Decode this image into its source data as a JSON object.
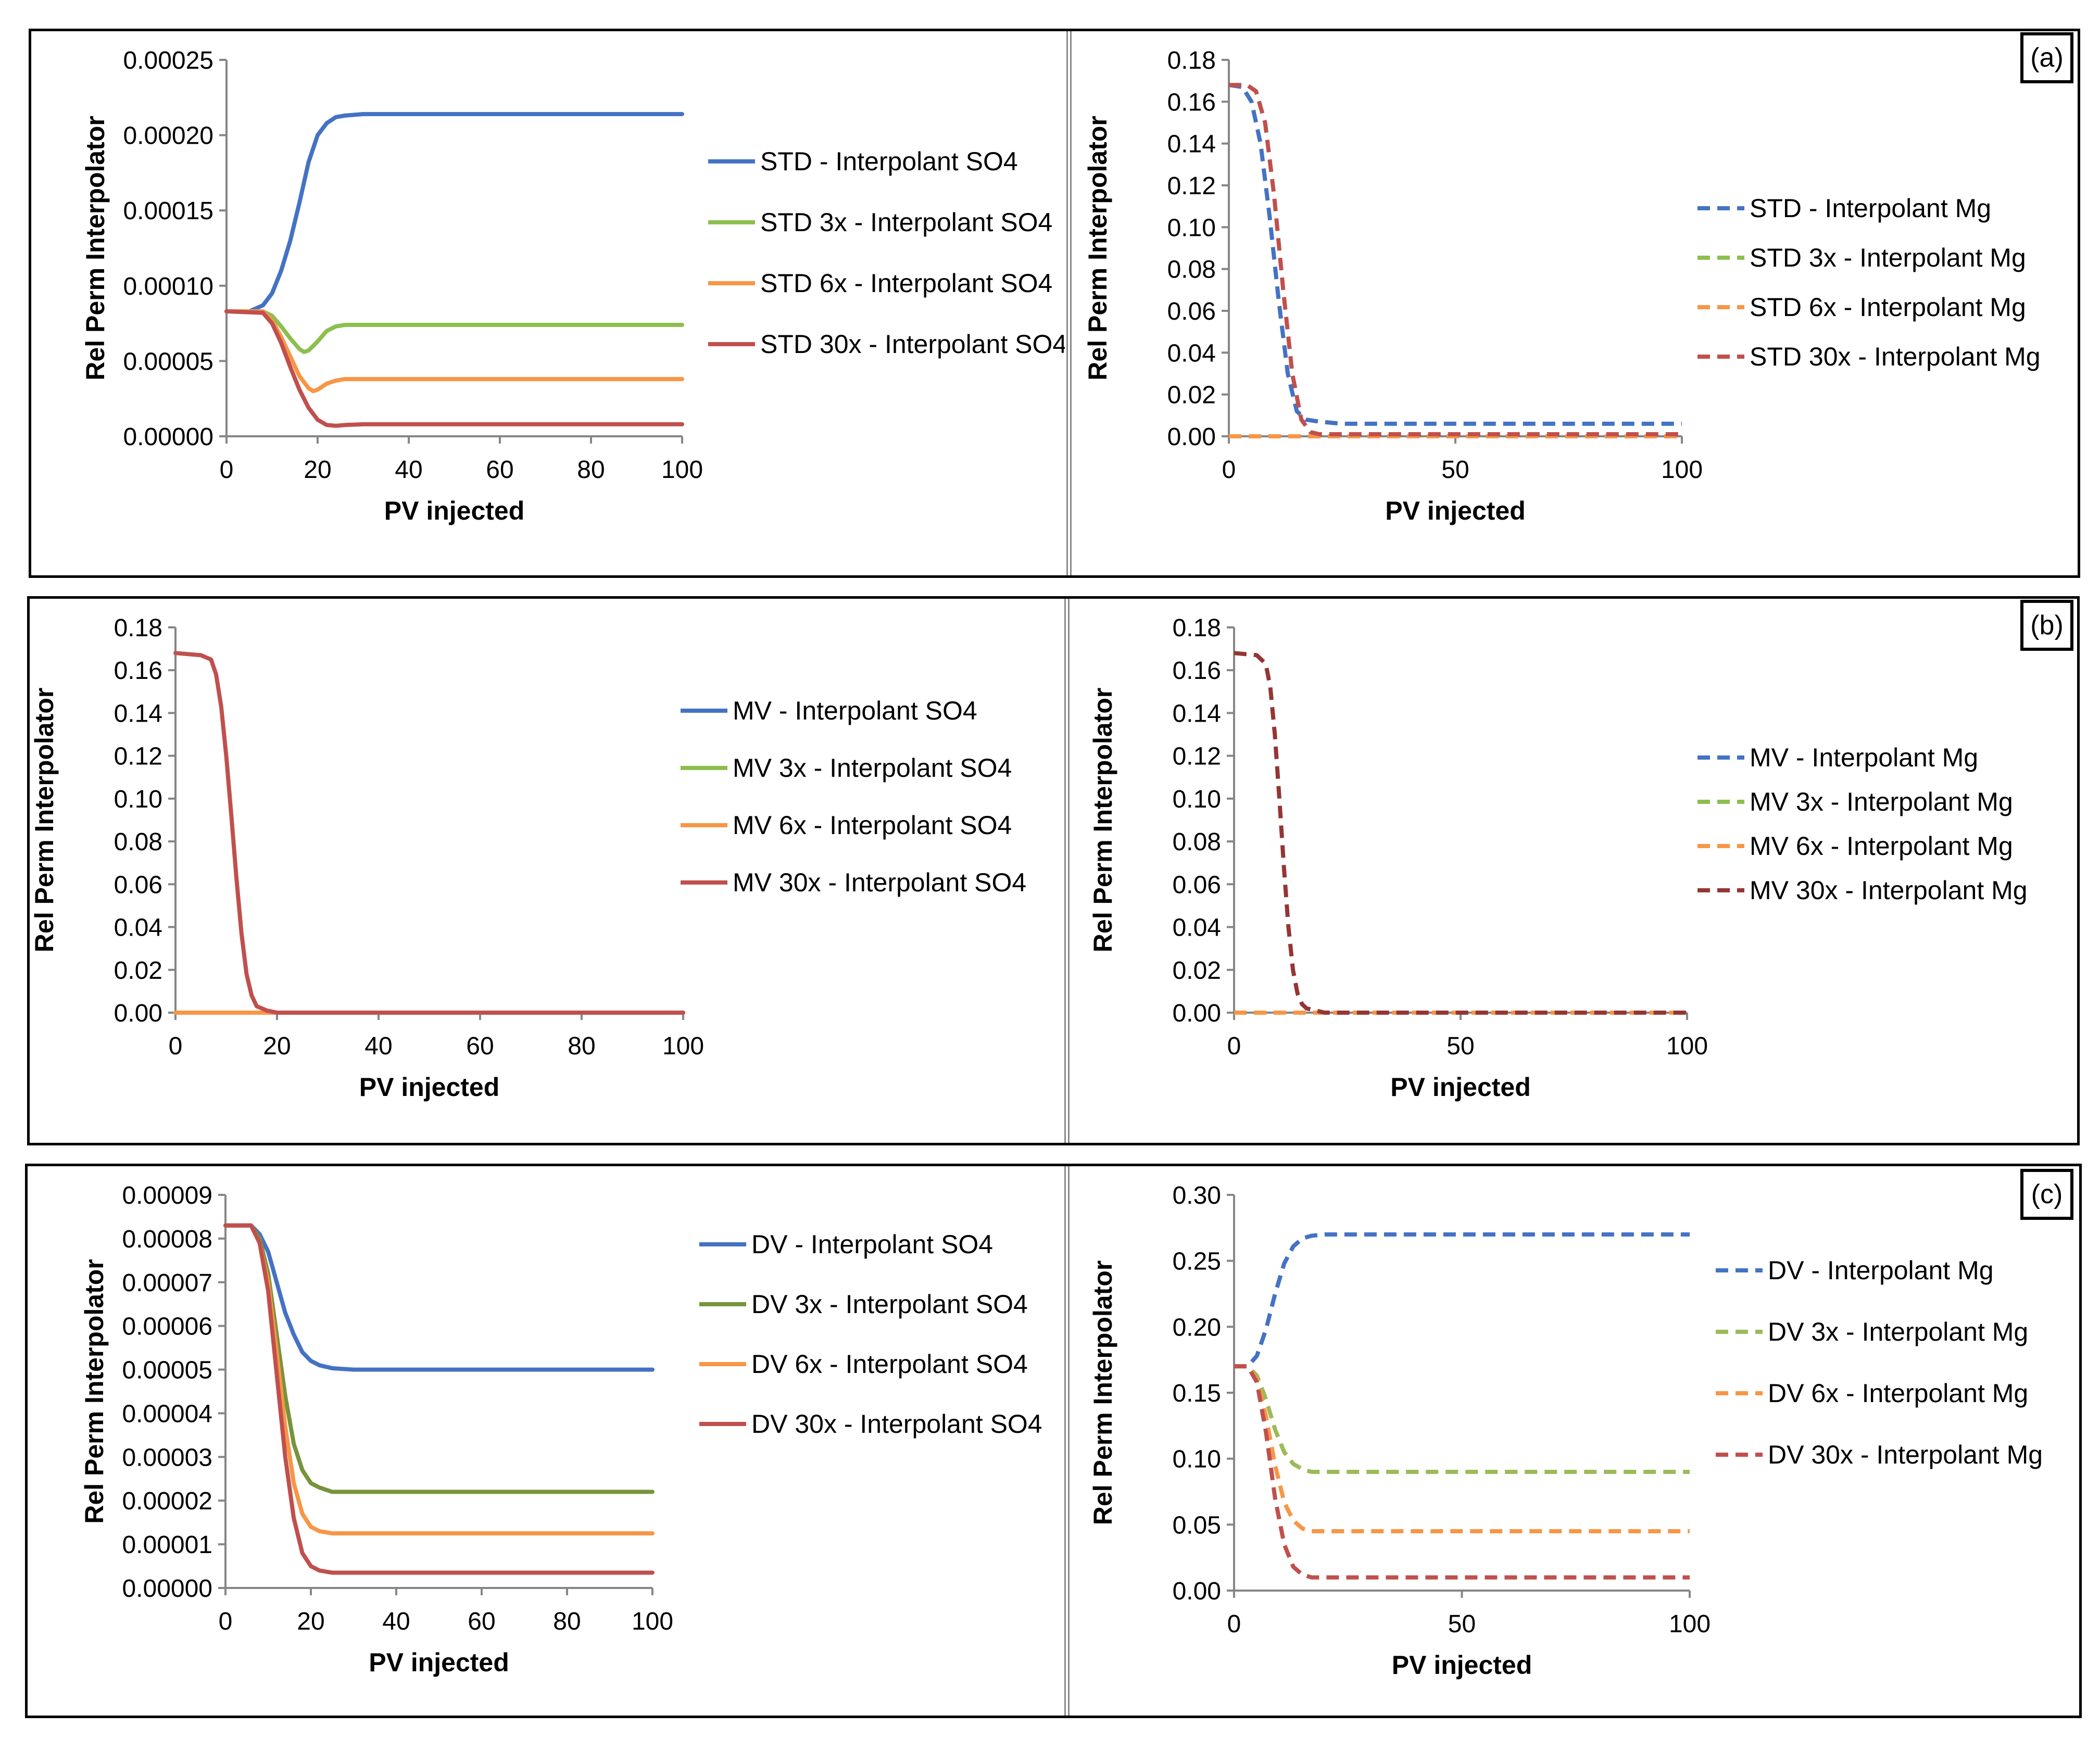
{
  "figure": {
    "panel_labels": [
      "(a)",
      "(b)",
      "(c)"
    ]
  },
  "chart_data": [
    {
      "id": "a-left",
      "type": "line",
      "xlabel": "PV injected",
      "ylabel": "Rel Perm Interpolator",
      "xlim": [
        0,
        100
      ],
      "ylim": [
        0,
        0.00025
      ],
      "xticks": [
        "0",
        "20",
        "40",
        "60",
        "80",
        "100"
      ],
      "yticks": [
        "0.00000",
        "0.00005",
        "0.00010",
        "0.00015",
        "0.00020",
        "0.00025"
      ],
      "legend_position": "right",
      "series": [
        {
          "name": "STD - Interpolant SO4",
          "color": "#4472C4",
          "dash": false,
          "x": [
            0,
            5,
            8,
            10,
            12,
            14,
            16,
            18,
            20,
            22,
            24,
            26,
            30,
            40,
            60,
            80,
            100
          ],
          "y": [
            8.3e-05,
            8.3e-05,
            8.7e-05,
            9.5e-05,
            0.00011,
            0.00013,
            0.000155,
            0.000182,
            0.0002,
            0.000208,
            0.000212,
            0.000213,
            0.000214,
            0.000214,
            0.000214,
            0.000214,
            0.000214
          ]
        },
        {
          "name": "STD 3x - Interpolant SO4",
          "color": "#8CBF4F",
          "dash": false,
          "x": [
            0,
            8,
            10,
            12,
            14,
            16,
            17,
            18,
            20,
            22,
            24,
            26,
            30,
            40,
            60,
            80,
            100
          ],
          "y": [
            8.3e-05,
            8.3e-05,
            8e-05,
            7.3e-05,
            6.5e-05,
            5.8e-05,
            5.6e-05,
            5.7e-05,
            6.3e-05,
            7e-05,
            7.3e-05,
            7.4e-05,
            7.4e-05,
            7.4e-05,
            7.4e-05,
            7.4e-05,
            7.4e-05
          ]
        },
        {
          "name": "STD 6x - Interpolant SO4",
          "color": "#F79646",
          "dash": false,
          "x": [
            0,
            8,
            10,
            12,
            14,
            16,
            18,
            19,
            20,
            22,
            24,
            26,
            30,
            40,
            60,
            80,
            100
          ],
          "y": [
            8.3e-05,
            8.3e-05,
            7.7e-05,
            6.6e-05,
            5.3e-05,
            4e-05,
            3.2e-05,
            3e-05,
            3.1e-05,
            3.5e-05,
            3.7e-05,
            3.8e-05,
            3.8e-05,
            3.8e-05,
            3.8e-05,
            3.8e-05,
            3.8e-05
          ]
        },
        {
          "name": "STD 30x - Interpolant SO4",
          "color": "#C0504D",
          "dash": false,
          "x": [
            0,
            8,
            10,
            12,
            14,
            16,
            18,
            20,
            22,
            24,
            26,
            30,
            40,
            60,
            80,
            100
          ],
          "y": [
            8.3e-05,
            8.2e-05,
            7.5e-05,
            6.2e-05,
            4.6e-05,
            3.1e-05,
            1.9e-05,
            1.1e-05,
            7.5e-06,
            7e-06,
            7.5e-06,
            8e-06,
            8e-06,
            8e-06,
            8e-06,
            8e-06
          ]
        }
      ]
    },
    {
      "id": "a-right",
      "type": "line",
      "xlabel": "PV injected",
      "ylabel": "Rel Perm Interpolator",
      "xlim": [
        0,
        100
      ],
      "ylim": [
        0,
        0.18
      ],
      "xticks": [
        "0",
        "50",
        "100"
      ],
      "yticks": [
        "0.00",
        "0.02",
        "0.04",
        "0.06",
        "0.08",
        "0.10",
        "0.12",
        "0.14",
        "0.16",
        "0.18"
      ],
      "legend_position": "right",
      "series": [
        {
          "name": "STD - Interpolant Mg",
          "color": "#4472C4",
          "dash": true,
          "x": [
            0,
            3,
            5,
            7,
            9,
            11,
            13,
            15,
            17,
            20,
            25,
            100
          ],
          "y": [
            0.168,
            0.167,
            0.16,
            0.14,
            0.105,
            0.065,
            0.03,
            0.012,
            0.008,
            0.007,
            0.006,
            0.006
          ]
        },
        {
          "name": "STD 3x - Interpolant Mg",
          "color": "#8CBF4F",
          "dash": true,
          "x": [
            0,
            100
          ],
          "y": [
            0.0,
            0.0
          ]
        },
        {
          "name": "STD 6x - Interpolant Mg",
          "color": "#F79646",
          "dash": true,
          "x": [
            0,
            100
          ],
          "y": [
            0.0,
            0.0
          ]
        },
        {
          "name": "STD 30x - Interpolant Mg",
          "color": "#C0504D",
          "dash": true,
          "x": [
            0,
            4,
            6,
            8,
            10,
            12,
            14,
            16,
            18,
            20,
            25,
            100
          ],
          "y": [
            0.168,
            0.168,
            0.165,
            0.15,
            0.115,
            0.07,
            0.03,
            0.008,
            0.002,
            0.001,
            0.001,
            0.001
          ]
        }
      ]
    },
    {
      "id": "b-left",
      "type": "line",
      "xlabel": "PV injected",
      "ylabel": "Rel Perm Interpolator",
      "xlim": [
        0,
        100
      ],
      "ylim": [
        0,
        0.18
      ],
      "xticks": [
        "0",
        "20",
        "40",
        "60",
        "80",
        "100"
      ],
      "yticks": [
        "0.00",
        "0.02",
        "0.04",
        "0.06",
        "0.08",
        "0.10",
        "0.12",
        "0.14",
        "0.16",
        "0.18"
      ],
      "legend_position": "right",
      "series": [
        {
          "name": "MV - Interpolant SO4",
          "color": "#4472C4",
          "dash": false,
          "x": [
            0,
            100
          ],
          "y": [
            0.0,
            0.0
          ]
        },
        {
          "name": "MV 3x - Interpolant SO4",
          "color": "#8CBF4F",
          "dash": false,
          "x": [
            0,
            100
          ],
          "y": [
            0.0,
            0.0
          ]
        },
        {
          "name": "MV 6x - Interpolant SO4",
          "color": "#F79646",
          "dash": false,
          "x": [
            0,
            100
          ],
          "y": [
            0.0,
            0.0
          ]
        },
        {
          "name": "MV 30x - Interpolant SO4",
          "color": "#C0504D",
          "dash": false,
          "x": [
            0,
            5,
            7,
            8,
            9,
            10,
            11,
            12,
            13,
            14,
            15,
            16,
            18,
            20,
            25,
            100
          ],
          "y": [
            0.168,
            0.167,
            0.165,
            0.158,
            0.143,
            0.12,
            0.092,
            0.063,
            0.037,
            0.018,
            0.008,
            0.003,
            0.001,
            0.0,
            0.0,
            0.0
          ]
        }
      ]
    },
    {
      "id": "b-right",
      "type": "line",
      "xlabel": "PV injected",
      "ylabel": "Rel Perm Interpolator",
      "xlim": [
        0,
        100
      ],
      "ylim": [
        0,
        0.18
      ],
      "xticks": [
        "0",
        "50",
        "100"
      ],
      "yticks": [
        "0.00",
        "0.02",
        "0.04",
        "0.06",
        "0.08",
        "0.10",
        "0.12",
        "0.14",
        "0.16",
        "0.18"
      ],
      "legend_position": "right",
      "series": [
        {
          "name": "MV - Interpolant Mg",
          "color": "#4472C4",
          "dash": true,
          "x": [
            0,
            100
          ],
          "y": [
            0.0,
            0.0
          ]
        },
        {
          "name": "MV 3x - Interpolant Mg",
          "color": "#8CBF4F",
          "dash": true,
          "x": [
            0,
            100
          ],
          "y": [
            0.0,
            0.0
          ]
        },
        {
          "name": "MV 6x - Interpolant Mg",
          "color": "#F79646",
          "dash": true,
          "x": [
            0,
            100
          ],
          "y": [
            0.0,
            0.0
          ]
        },
        {
          "name": "MV 30x - Interpolant Mg",
          "color": "#943634",
          "dash": true,
          "x": [
            0,
            5,
            7,
            8,
            9,
            10,
            11,
            12,
            13,
            14,
            15,
            16,
            18,
            20,
            25,
            100
          ],
          "y": [
            0.168,
            0.167,
            0.163,
            0.152,
            0.13,
            0.1,
            0.068,
            0.04,
            0.02,
            0.009,
            0.004,
            0.002,
            0.001,
            0.0,
            0.0,
            0.0
          ]
        }
      ]
    },
    {
      "id": "c-left",
      "type": "line",
      "xlabel": "PV injected",
      "ylabel": "Rel Perm Interpolator",
      "xlim": [
        0,
        100
      ],
      "ylim": [
        0,
        9e-05
      ],
      "xticks": [
        "0",
        "20",
        "40",
        "60",
        "80",
        "100"
      ],
      "yticks": [
        "0.00000",
        "0.00001",
        "0.00002",
        "0.00003",
        "0.00004",
        "0.00005",
        "0.00006",
        "0.00007",
        "0.00008",
        "0.00009"
      ],
      "legend_position": "right",
      "series": [
        {
          "name": "DV - Interpolant SO4",
          "color": "#4472C4",
          "dash": false,
          "x": [
            0,
            6,
            8,
            10,
            12,
            14,
            16,
            18,
            20,
            22,
            25,
            30,
            40,
            60,
            80,
            100
          ],
          "y": [
            8.3e-05,
            8.3e-05,
            8.1e-05,
            7.7e-05,
            7e-05,
            6.3e-05,
            5.8e-05,
            5.4e-05,
            5.2e-05,
            5.1e-05,
            5.03e-05,
            5e-05,
            5e-05,
            5e-05,
            5e-05,
            5e-05
          ]
        },
        {
          "name": "DV 3x - Interpolant SO4",
          "color": "#77933C",
          "dash": false,
          "x": [
            0,
            6,
            8,
            10,
            12,
            14,
            16,
            18,
            20,
            22,
            25,
            30,
            40,
            60,
            80,
            100
          ],
          "y": [
            8.3e-05,
            8.3e-05,
            8e-05,
            7.2e-05,
            5.8e-05,
            4.4e-05,
            3.3e-05,
            2.7e-05,
            2.4e-05,
            2.3e-05,
            2.2e-05,
            2.2e-05,
            2.2e-05,
            2.2e-05,
            2.2e-05,
            2.2e-05
          ]
        },
        {
          "name": "DV 6x - Interpolant SO4",
          "color": "#F79646",
          "dash": false,
          "x": [
            0,
            6,
            8,
            10,
            12,
            14,
            16,
            18,
            20,
            22,
            25,
            30,
            40,
            60,
            80,
            100
          ],
          "y": [
            8.3e-05,
            8.3e-05,
            7.9e-05,
            7e-05,
            5.4e-05,
            3.7e-05,
            2.4e-05,
            1.7e-05,
            1.4e-05,
            1.3e-05,
            1.25e-05,
            1.25e-05,
            1.25e-05,
            1.25e-05,
            1.25e-05,
            1.25e-05
          ]
        },
        {
          "name": "DV 30x - Interpolant SO4",
          "color": "#C0504D",
          "dash": false,
          "x": [
            0,
            6,
            8,
            10,
            12,
            14,
            16,
            18,
            20,
            22,
            25,
            30,
            40,
            60,
            80,
            100
          ],
          "y": [
            8.3e-05,
            8.3e-05,
            7.9e-05,
            6.8e-05,
            4.9e-05,
            3e-05,
            1.6e-05,
            8e-06,
            5e-06,
            4e-06,
            3.5e-06,
            3.5e-06,
            3.5e-06,
            3.5e-06,
            3.5e-06,
            3.5e-06
          ]
        }
      ]
    },
    {
      "id": "c-right",
      "type": "line",
      "xlabel": "PV injected",
      "ylabel": "Rel Perm Interpolator",
      "xlim": [
        0,
        100
      ],
      "ylim": [
        0,
        0.3
      ],
      "xticks": [
        "0",
        "50",
        "100"
      ],
      "yticks": [
        "0.00",
        "0.05",
        "0.10",
        "0.15",
        "0.20",
        "0.25",
        "0.30"
      ],
      "legend_position": "right",
      "series": [
        {
          "name": "DV - Interpolant Mg",
          "color": "#4472C4",
          "dash": true,
          "x": [
            0,
            3,
            5,
            7,
            9,
            11,
            13,
            15,
            17,
            20,
            25,
            100
          ],
          "y": [
            0.17,
            0.17,
            0.178,
            0.198,
            0.225,
            0.248,
            0.261,
            0.267,
            0.269,
            0.27,
            0.27,
            0.27
          ]
        },
        {
          "name": "DV 3x - Interpolant Mg",
          "color": "#9BBB59",
          "dash": true,
          "x": [
            0,
            3,
            5,
            7,
            9,
            11,
            13,
            15,
            17,
            20,
            25,
            100
          ],
          "y": [
            0.17,
            0.17,
            0.163,
            0.145,
            0.122,
            0.105,
            0.096,
            0.092,
            0.09,
            0.09,
            0.09,
            0.09
          ]
        },
        {
          "name": "DV 6x - Interpolant Mg",
          "color": "#F79646",
          "dash": true,
          "x": [
            0,
            3,
            5,
            7,
            9,
            11,
            13,
            15,
            17,
            20,
            25,
            100
          ],
          "y": [
            0.17,
            0.17,
            0.16,
            0.132,
            0.095,
            0.067,
            0.053,
            0.047,
            0.045,
            0.045,
            0.045,
            0.045
          ]
        },
        {
          "name": "DV 30x - Interpolant Mg",
          "color": "#C0504D",
          "dash": true,
          "x": [
            0,
            3,
            5,
            7,
            9,
            11,
            13,
            15,
            17,
            20,
            25,
            100
          ],
          "y": [
            0.17,
            0.17,
            0.158,
            0.12,
            0.07,
            0.035,
            0.018,
            0.012,
            0.01,
            0.01,
            0.01,
            0.01
          ]
        }
      ]
    }
  ]
}
